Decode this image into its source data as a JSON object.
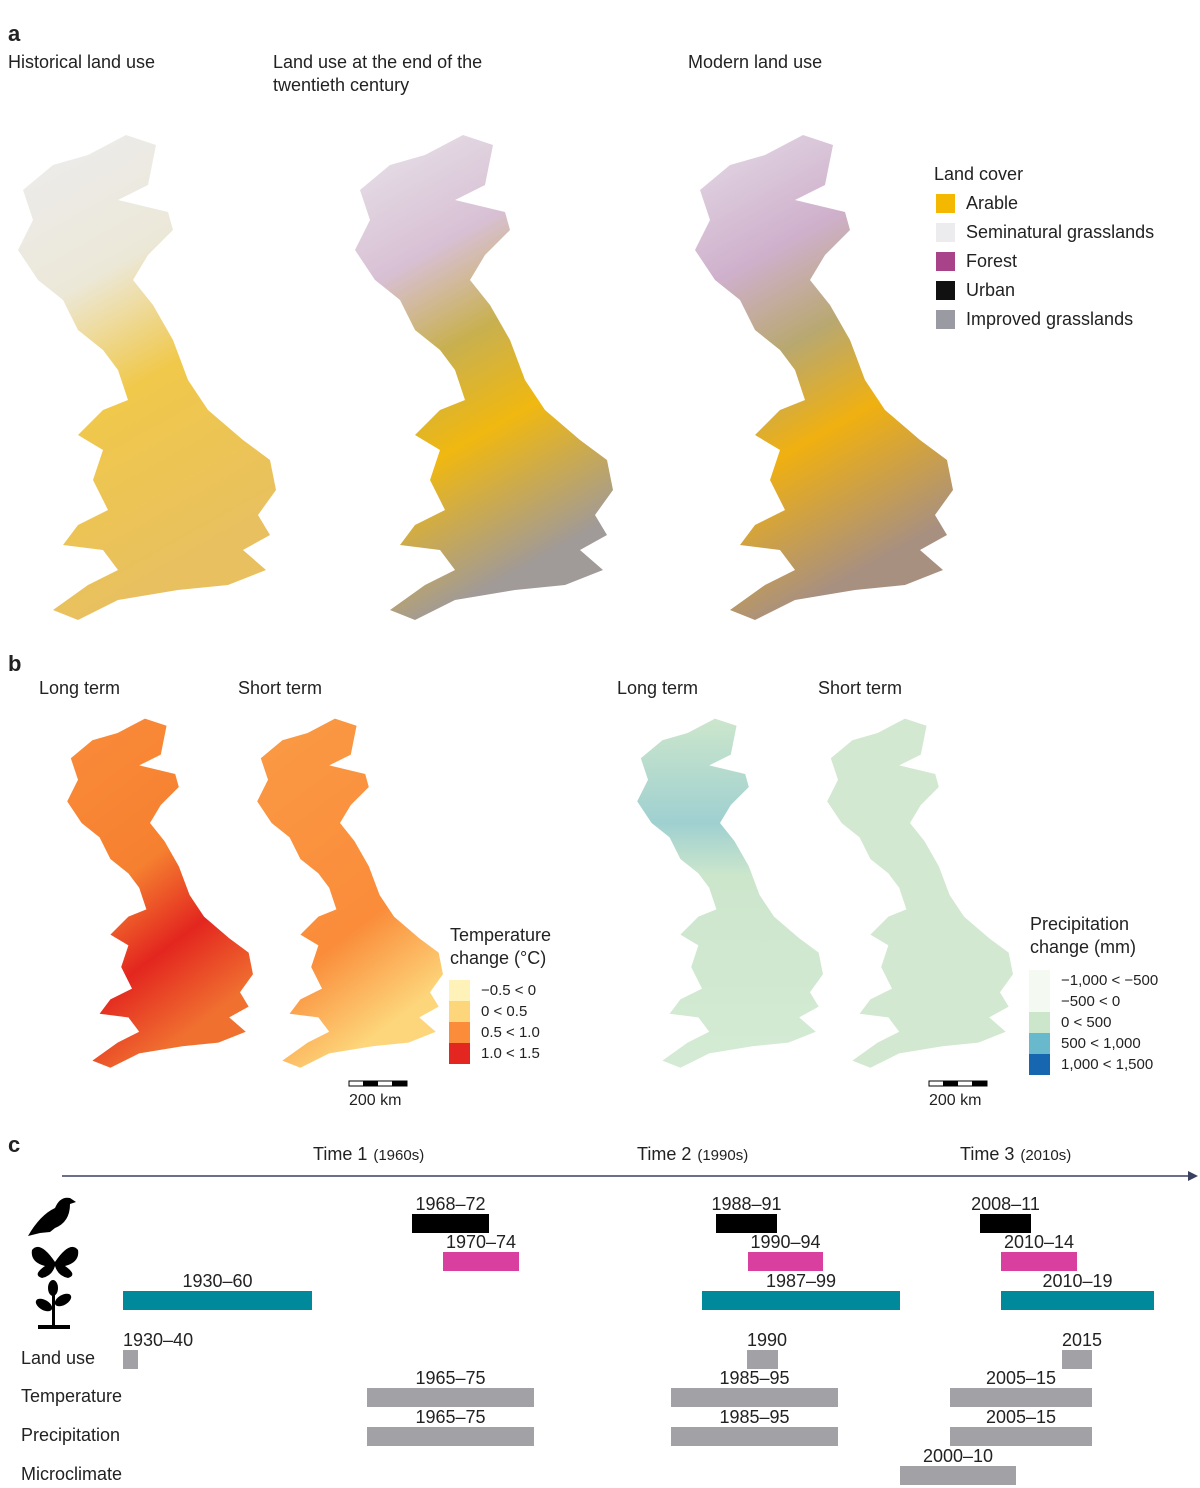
{
  "panel_a": {
    "label": "a",
    "maps": [
      "Historical land use",
      "Land use at the end of the twentieth century",
      "Modern land use"
    ],
    "legend": {
      "title": "Land cover",
      "items": [
        {
          "name": "Arable",
          "color": "#f5b800"
        },
        {
          "name": "Seminatural grasslands",
          "color": "#ececee"
        },
        {
          "name": "Forest",
          "color": "#a8438a"
        },
        {
          "name": "Urban",
          "color": "#111111"
        },
        {
          "name": "Improved grasslands",
          "color": "#9a9aa2"
        }
      ]
    }
  },
  "panel_b": {
    "label": "b",
    "temperature": {
      "maps": [
        "Long term",
        "Short term"
      ],
      "legend": {
        "title": "Temperature change (°C)",
        "items": [
          {
            "name": "−0.5 < 0",
            "color": "#fff2b8"
          },
          {
            "name": "0 < 0.5",
            "color": "#fdd57a"
          },
          {
            "name": "0.5 < 1.0",
            "color": "#fa8c3a"
          },
          {
            "name": "1.0 < 1.5",
            "color": "#e3261f"
          }
        ]
      },
      "scale": "200 km"
    },
    "precipitation": {
      "maps": [
        "Long term",
        "Short term"
      ],
      "legend": {
        "title": "Precipitation change (mm)",
        "items": [
          {
            "name": "−1,000 < −500",
            "color": "#f4f9f2"
          },
          {
            "name": "−500 < 0",
            "color": "#f4f9f2"
          },
          {
            "name": "0 < 500",
            "color": "#cce6cc"
          },
          {
            "name": "500 < 1,000",
            "color": "#69b9cc"
          },
          {
            "name": "1,000 < 1,500",
            "color": "#1667b0"
          }
        ]
      },
      "scale": "200 km"
    }
  },
  "panel_c": {
    "label": "c",
    "headers": [
      {
        "label": "Time 1",
        "period": "(1960s)"
      },
      {
        "label": "Time 2",
        "period": "(1990s)"
      },
      {
        "label": "Time 3",
        "period": "(2010s)"
      }
    ],
    "rows": [
      {
        "icon": "bird",
        "color": "#000000",
        "bars": [
          "1968–72",
          "1988–91",
          "2008–11"
        ]
      },
      {
        "icon": "butterfly",
        "color": "#d83f9e",
        "bars": [
          "1970–74",
          "1990–94",
          "2010–14"
        ]
      },
      {
        "icon": "plant",
        "color": "#00899a",
        "bars": [
          "1930–60",
          "1987–99",
          "2010–19"
        ]
      },
      {
        "name": "Land use",
        "color": "#a2a2a6",
        "bars": [
          "1930–40",
          "1990",
          "2015"
        ]
      },
      {
        "name": "Temperature",
        "color": "#a2a2a6",
        "bars": [
          "1965–75",
          "1985–95",
          "2005–15"
        ]
      },
      {
        "name": "Precipitation",
        "color": "#a2a2a6",
        "bars": [
          "1965–75",
          "1985–95",
          "2005–15"
        ]
      },
      {
        "name": "Microclimate",
        "color": "#a2a2a6",
        "bars": [
          "2000–10"
        ]
      }
    ]
  }
}
